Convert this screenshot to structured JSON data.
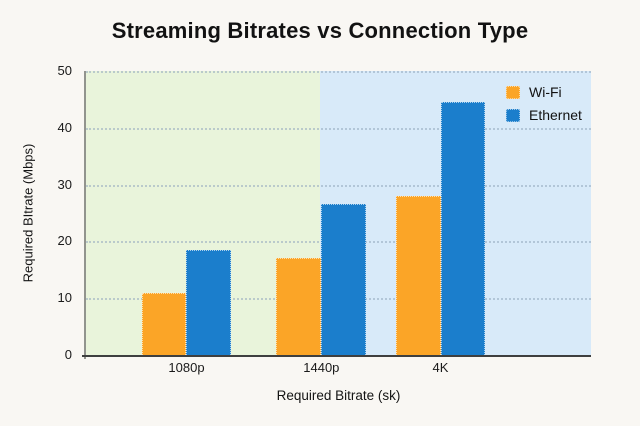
{
  "chart_data": {
    "type": "bar",
    "title": "Streaming Bitrates vs Connection Type",
    "xlabel": "Required Bitrate (sk)",
    "ylabel": "Required BItrate (Mbps)",
    "categories": [
      "1080p",
      "1440p",
      "4K"
    ],
    "series": [
      {
        "name": "Wi-Fi",
        "color": "#FBA527",
        "values": [
          11,
          17,
          28
        ]
      },
      {
        "name": "Ethernet",
        "color": "#1B7ECC",
        "values": [
          18.5,
          26.5,
          44.5
        ]
      }
    ],
    "ylim": [
      0,
      50
    ],
    "y_ticks": [
      0,
      10,
      20,
      30,
      40,
      50
    ],
    "grid": "horizontal-dotted",
    "legend_position": "top-right-inside",
    "background_panels": [
      {
        "name": "left-green",
        "color": "#E9F4DB"
      },
      {
        "name": "right-blue",
        "color": "#D8EAF9"
      }
    ],
    "layout": {
      "group_center_fracs": [
        0.199,
        0.466,
        0.702
      ],
      "bar_width_frac": 0.089,
      "panel_split_frac": 0.463
    }
  }
}
